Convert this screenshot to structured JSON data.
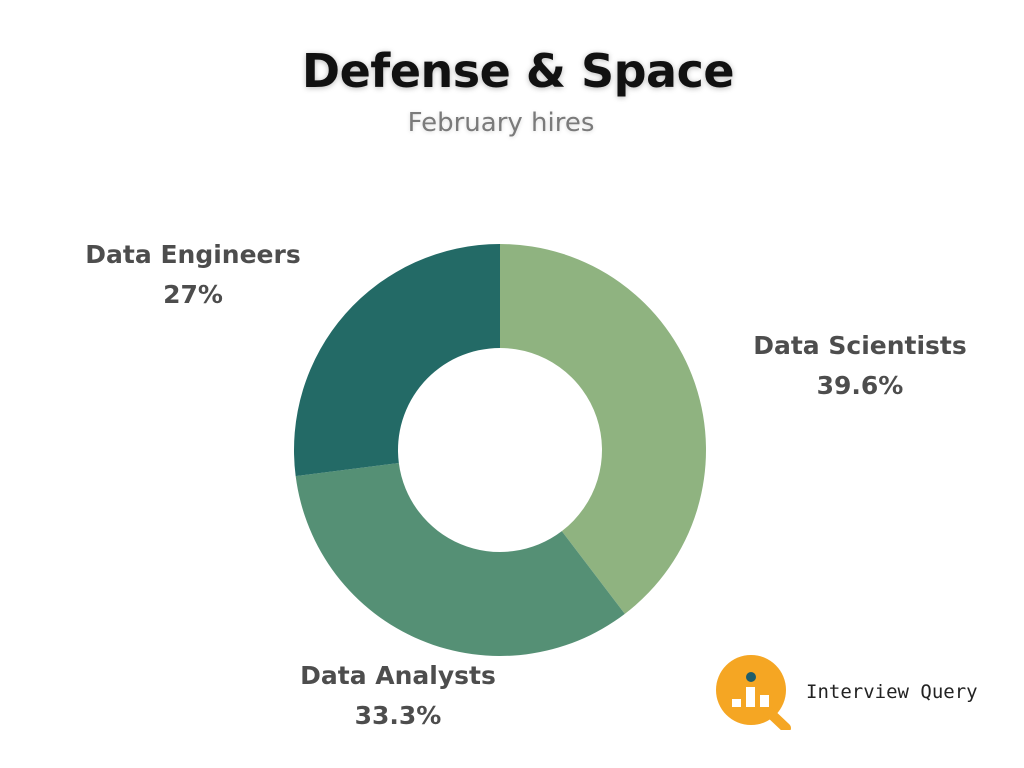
{
  "title": "Defense & Space",
  "subtitle": "February hires",
  "chart_data": {
    "type": "pie",
    "variant": "donut",
    "title": "Defense & Space",
    "subtitle": "February hires",
    "series": [
      {
        "name": "Data Scientists",
        "value": 39.6,
        "label": "39.6%",
        "color": "#8fb380"
      },
      {
        "name": "Data Analysts",
        "value": 33.3,
        "label": "33.3%",
        "color": "#559075"
      },
      {
        "name": "Data Engineers",
        "value": 27,
        "label": "27%",
        "color": "#236a66"
      }
    ],
    "legend": "none"
  },
  "branding": {
    "name": "Interview Query",
    "icon": "magnifier-bar-chart-icon",
    "accent_color": "#f5a623",
    "dot_color": "#1e5d6b"
  }
}
